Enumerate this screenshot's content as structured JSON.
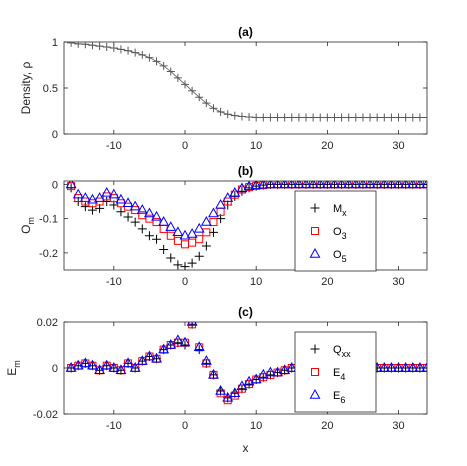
{
  "chart_data": [
    {
      "type": "line",
      "title": "(a)",
      "xlabel": "",
      "ylabel": "Density, ρ",
      "xlim": [
        -17,
        34
      ],
      "ylim": [
        0,
        1
      ],
      "xticks": [
        -10,
        0,
        10,
        20,
        30
      ],
      "yticks": [
        0,
        0.5,
        1
      ],
      "xtick_labels": [
        "-10",
        "0",
        "10",
        "20",
        "30"
      ],
      "ytick_labels": [
        "0",
        "0.5",
        "1"
      ],
      "grid": false,
      "series": [
        {
          "name": "",
          "color": "#5a5a5a",
          "marker": "plus-line",
          "x": [
            -16,
            -15,
            -14,
            -13,
            -12,
            -11,
            -10,
            -9,
            -8,
            -7,
            -6,
            -5,
            -4,
            -3,
            -2,
            -1,
            0,
            1,
            2,
            3,
            4,
            5,
            6,
            7,
            8,
            9,
            10,
            11,
            12,
            13,
            14,
            15,
            16,
            17,
            18,
            19,
            20,
            21,
            22,
            23,
            24,
            25,
            26,
            27,
            28,
            29,
            30,
            31,
            32,
            33,
            34
          ],
          "values": [
            0.99,
            0.98,
            0.975,
            0.965,
            0.955,
            0.945,
            0.935,
            0.92,
            0.905,
            0.885,
            0.86,
            0.83,
            0.79,
            0.74,
            0.68,
            0.61,
            0.54,
            0.47,
            0.4,
            0.335,
            0.28,
            0.24,
            0.215,
            0.2,
            0.19,
            0.185,
            0.18,
            0.18,
            0.18,
            0.18,
            0.18,
            0.18,
            0.18,
            0.18,
            0.18,
            0.18,
            0.18,
            0.18,
            0.18,
            0.18,
            0.18,
            0.18,
            0.18,
            0.18,
            0.18,
            0.18,
            0.18,
            0.18,
            0.18,
            0.18,
            0.18
          ]
        }
      ]
    },
    {
      "type": "scatter",
      "title": "(b)",
      "xlabel": "",
      "ylabel": "O_m",
      "xlim": [
        -17,
        34
      ],
      "ylim": [
        -0.25,
        0.01
      ],
      "xticks": [
        -10,
        0,
        10,
        20,
        30
      ],
      "yticks": [
        -0.2,
        -0.1,
        0
      ],
      "xtick_labels": [
        "-10",
        "0",
        "10",
        "20",
        "30"
      ],
      "ytick_labels": [
        "-0.2",
        "-0.1",
        "0"
      ],
      "legend_position": "right",
      "series": [
        {
          "name": "M",
          "name_sub": "x",
          "color": "#000000",
          "marker": "plus",
          "x": [
            -16,
            -15,
            -14,
            -13,
            -12,
            -11,
            -10,
            -9,
            -8,
            -7,
            -6,
            -5,
            -4,
            -3,
            -2,
            -1,
            0,
            1,
            2,
            3,
            4,
            5,
            6,
            7,
            8,
            9,
            10,
            11,
            12,
            13,
            14,
            15,
            16,
            17,
            18,
            19,
            20,
            21,
            22,
            23,
            24,
            25,
            26,
            27,
            28,
            29,
            30,
            31,
            32,
            33,
            34
          ],
          "values": [
            -0.01,
            -0.05,
            -0.065,
            -0.075,
            -0.07,
            -0.05,
            -0.06,
            -0.08,
            -0.095,
            -0.11,
            -0.13,
            -0.15,
            -0.16,
            -0.19,
            -0.215,
            -0.235,
            -0.24,
            -0.23,
            -0.21,
            -0.18,
            -0.14,
            -0.1,
            -0.06,
            -0.035,
            -0.02,
            -0.01,
            -0.005,
            -0.002,
            0,
            0,
            0,
            0,
            0,
            0,
            0,
            0,
            0,
            0,
            0,
            0,
            0,
            0,
            0,
            0,
            0,
            0,
            0,
            0,
            0,
            0,
            0
          ]
        },
        {
          "name": "O",
          "name_sub": "3",
          "color": "#ff0000",
          "marker": "square",
          "x": [
            -16,
            -15,
            -14,
            -13,
            -12,
            -11,
            -10,
            -9,
            -8,
            -7,
            -6,
            -5,
            -4,
            -3,
            -2,
            -1,
            0,
            1,
            2,
            3,
            4,
            5,
            6,
            7,
            8,
            9,
            10,
            11,
            12,
            13,
            14,
            15,
            16,
            17,
            18,
            19,
            20,
            21,
            22,
            23,
            24,
            25,
            26,
            27,
            28,
            29,
            30,
            31,
            32,
            33,
            34
          ],
          "values": [
            -0.005,
            -0.04,
            -0.05,
            -0.055,
            -0.05,
            -0.035,
            -0.04,
            -0.055,
            -0.065,
            -0.075,
            -0.09,
            -0.1,
            -0.11,
            -0.13,
            -0.15,
            -0.165,
            -0.175,
            -0.17,
            -0.16,
            -0.14,
            -0.11,
            -0.08,
            -0.05,
            -0.03,
            -0.015,
            -0.008,
            -0.004,
            -0.002,
            0,
            0,
            0,
            0,
            0,
            0,
            0,
            0,
            0,
            0,
            0,
            0,
            0,
            0,
            0,
            0,
            0,
            0,
            0,
            0,
            0,
            0,
            0
          ]
        },
        {
          "name": "O",
          "name_sub": "5",
          "color": "#0000ff",
          "marker": "triangle",
          "x": [
            -16,
            -15,
            -14,
            -13,
            -12,
            -11,
            -10,
            -9,
            -8,
            -7,
            -6,
            -5,
            -4,
            -3,
            -2,
            -1,
            0,
            1,
            2,
            3,
            4,
            5,
            6,
            7,
            8,
            9,
            10,
            11,
            12,
            13,
            14,
            15,
            16,
            17,
            18,
            19,
            20,
            21,
            22,
            23,
            24,
            25,
            26,
            27,
            28,
            29,
            30,
            31,
            32,
            33,
            34
          ],
          "values": [
            0,
            -0.03,
            -0.04,
            -0.045,
            -0.04,
            -0.025,
            -0.03,
            -0.045,
            -0.055,
            -0.065,
            -0.075,
            -0.085,
            -0.095,
            -0.11,
            -0.125,
            -0.14,
            -0.15,
            -0.145,
            -0.13,
            -0.11,
            -0.085,
            -0.06,
            -0.04,
            -0.025,
            -0.012,
            -0.006,
            -0.003,
            -0.001,
            0,
            0,
            0,
            0,
            0,
            0,
            0,
            0,
            0,
            0,
            0,
            0,
            0,
            0,
            0,
            0,
            0,
            0,
            0,
            0,
            0,
            0,
            0
          ]
        }
      ]
    },
    {
      "type": "scatter",
      "title": "(c)",
      "xlabel": "x",
      "ylabel": "E_m",
      "xlim": [
        -17,
        34
      ],
      "ylim": [
        -0.02,
        0.02
      ],
      "xticks": [
        -10,
        0,
        10,
        20,
        30
      ],
      "yticks": [
        -0.02,
        0,
        0.02
      ],
      "xtick_labels": [
        "-10",
        "0",
        "10",
        "20",
        "30"
      ],
      "ytick_labels": [
        "-0.02",
        "0",
        "0.02"
      ],
      "legend_position": "right",
      "series": [
        {
          "name": "Q",
          "name_sub": "xx",
          "color": "#000000",
          "marker": "plus",
          "x": [
            -16,
            -15,
            -14,
            -13,
            -12,
            -11,
            -10,
            -9,
            -8,
            -7,
            -6,
            -5,
            -4,
            -3,
            -2,
            -1,
            0,
            1,
            2,
            3,
            4,
            5,
            6,
            7,
            8,
            9,
            10,
            11,
            12,
            13,
            14,
            15,
            16,
            17,
            18,
            19,
            20,
            21,
            22,
            23,
            24,
            25,
            26,
            27,
            28,
            29,
            30,
            31,
            32,
            33,
            34
          ],
          "values": [
            0,
            0.001,
            0.002,
            0.001,
            -0.001,
            0.001,
            0,
            -0.001,
            0.002,
            0,
            0.003,
            0.005,
            0.004,
            0.008,
            0.01,
            0.011,
            0.01,
            0.019,
            0.008,
            0.002,
            -0.003,
            -0.01,
            -0.013,
            -0.011,
            -0.009,
            -0.007,
            -0.005,
            -0.004,
            -0.003,
            -0.002,
            -0.001,
            0,
            0,
            0.001,
            0,
            0.001,
            0,
            0,
            0.001,
            0,
            0,
            0,
            0.001,
            0,
            0,
            0,
            0,
            0,
            0,
            0,
            0
          ]
        },
        {
          "name": "E",
          "name_sub": "4",
          "color": "#ff0000",
          "marker": "square",
          "x": [
            -16,
            -15,
            -14,
            -13,
            -12,
            -11,
            -10,
            -9,
            -8,
            -7,
            -6,
            -5,
            -4,
            -3,
            -2,
            -1,
            0,
            1,
            2,
            3,
            4,
            5,
            6,
            7,
            8,
            9,
            10,
            11,
            12,
            13,
            14,
            15,
            16,
            17,
            18,
            19,
            20,
            21,
            22,
            23,
            24,
            25,
            26,
            27,
            28,
            29,
            30,
            31,
            32,
            33,
            34
          ],
          "values": [
            0,
            0.001,
            0.002,
            0.001,
            -0.001,
            0.001,
            0,
            -0.001,
            0.002,
            0,
            0.003,
            0.005,
            0.004,
            0.008,
            0.01,
            0.011,
            0.011,
            0.019,
            0.009,
            0.002,
            -0.003,
            -0.011,
            -0.014,
            -0.012,
            -0.009,
            -0.007,
            -0.005,
            -0.004,
            -0.003,
            -0.002,
            -0.001,
            0,
            0,
            0.001,
            0,
            0.001,
            0,
            0,
            0.001,
            0,
            0,
            0,
            0.001,
            0,
            0,
            0,
            0,
            0,
            0,
            0,
            0
          ]
        },
        {
          "name": "E",
          "name_sub": "6",
          "color": "#0000ff",
          "marker": "triangle",
          "x": [
            -16,
            -15,
            -14,
            -13,
            -12,
            -11,
            -10,
            -9,
            -8,
            -7,
            -6,
            -5,
            -4,
            -3,
            -2,
            -1,
            0,
            1,
            2,
            3,
            4,
            5,
            6,
            7,
            8,
            9,
            10,
            11,
            12,
            13,
            14,
            15,
            16,
            17,
            18,
            19,
            20,
            21,
            22,
            23,
            24,
            25,
            26,
            27,
            28,
            29,
            30,
            31,
            32,
            33,
            34
          ],
          "values": [
            0,
            0.001,
            0.002,
            0.001,
            -0.001,
            0.001,
            0,
            -0.001,
            0.002,
            0,
            0.003,
            0.005,
            0.004,
            0.008,
            0.01,
            0.012,
            0.011,
            0.02,
            0.009,
            0.003,
            -0.003,
            -0.01,
            -0.013,
            -0.011,
            -0.008,
            -0.006,
            -0.005,
            -0.003,
            -0.002,
            -0.002,
            -0.001,
            0,
            0,
            0.001,
            0,
            0.001,
            0,
            0,
            0.001,
            0,
            0,
            0,
            0.001,
            0,
            0,
            0,
            0,
            0,
            0,
            0,
            0
          ]
        }
      ]
    }
  ]
}
